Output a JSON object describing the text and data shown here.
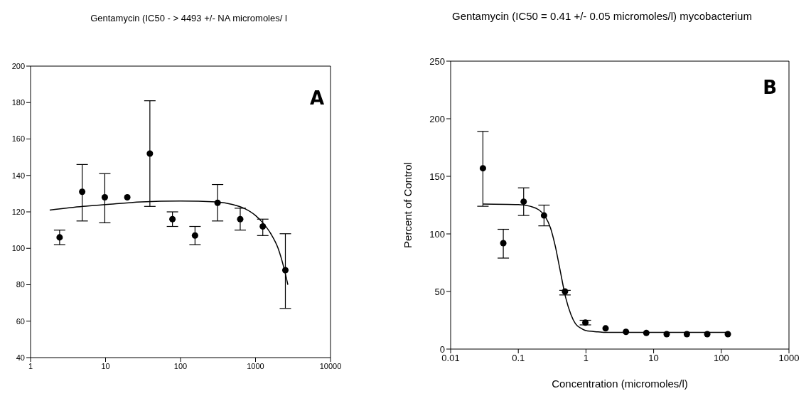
{
  "chart_data": [
    {
      "type": "scatter",
      "title": "Gentamycin (IC50 - > 4493 +/- NA micromoles/ l",
      "annotations": [
        "A"
      ],
      "xlim": [
        1,
        10000
      ],
      "xticks": [
        1,
        10,
        100,
        1000,
        10000
      ],
      "ylim": [
        40,
        200
      ],
      "yticks": [
        40,
        60,
        80,
        100,
        120,
        140,
        160,
        180,
        200
      ],
      "log": "x",
      "line_style": "solid",
      "series": [
        {
          "marker": "circle",
          "color": "#000000",
          "x": [
            2.44,
            4.88,
            9.77,
            19.5,
            39,
            78,
            156,
            312,
            625,
            1250,
            2500
          ],
          "values": [
            106,
            131,
            128,
            128,
            152,
            116,
            107,
            125,
            116,
            112,
            88
          ],
          "errors": [
            [
              102,
              110
            ],
            [
              115,
              146
            ],
            [
              114,
              141
            ],
            null,
            [
              123,
              181
            ],
            [
              112,
              120
            ],
            [
              102,
              112
            ],
            [
              115,
              135
            ],
            [
              110,
              122
            ],
            [
              107,
              116
            ],
            [
              67,
              108
            ]
          ]
        },
        {
          "type": "line",
          "color": "#000000",
          "x": [
            1.8,
            5,
            10,
            30,
            100,
            300,
            500,
            700,
            1000,
            1250,
            1600,
            2000,
            2400,
            2700
          ],
          "values": [
            121,
            123,
            124,
            125.5,
            126,
            125.5,
            124,
            122,
            118,
            114,
            108,
            100,
            89,
            80
          ]
        }
      ]
    },
    {
      "type": "scatter",
      "title": "Gentamycin (IC50 = 0.41 +/- 0.05 micromoles/l) mycobacterium",
      "xlabel": "Concentration (micromoles/l)",
      "ylabel": "Percent of Control",
      "annotations": [
        "B"
      ],
      "xlim": [
        0.01,
        1000
      ],
      "xticks": [
        0.01,
        0.1,
        1,
        10,
        100,
        1000
      ],
      "ylim": [
        0,
        250
      ],
      "yticks": [
        0,
        50,
        100,
        150,
        200,
        250
      ],
      "log": "x",
      "line_style": "solid",
      "series": [
        {
          "marker": "circle",
          "color": "#000000",
          "x": [
            0.03,
            0.06,
            0.12,
            0.24,
            0.49,
            0.98,
            1.95,
            3.9,
            7.8,
            15.6,
            31,
            62,
            125
          ],
          "values": [
            157,
            92,
            128,
            116,
            50,
            23,
            18,
            15,
            14,
            13,
            13,
            13,
            13
          ],
          "errors": [
            [
              124,
              189
            ],
            [
              79,
              104
            ],
            [
              116,
              140
            ],
            [
              107,
              125
            ],
            [
              47,
              51
            ],
            [
              21,
              25
            ],
            null,
            null,
            null,
            null,
            null,
            null,
            null
          ]
        },
        {
          "type": "line",
          "color": "#000000",
          "x": [
            0.03,
            0.1,
            0.15,
            0.2,
            0.25,
            0.3,
            0.35,
            0.41,
            0.5,
            0.6,
            0.7,
            0.85,
            1,
            1.5,
            2,
            5,
            130
          ],
          "values": [
            126,
            125.5,
            124,
            121,
            115,
            105,
            90,
            70,
            45,
            30,
            22,
            18,
            16,
            15,
            14.5,
            14.5,
            14.5
          ]
        }
      ]
    }
  ]
}
